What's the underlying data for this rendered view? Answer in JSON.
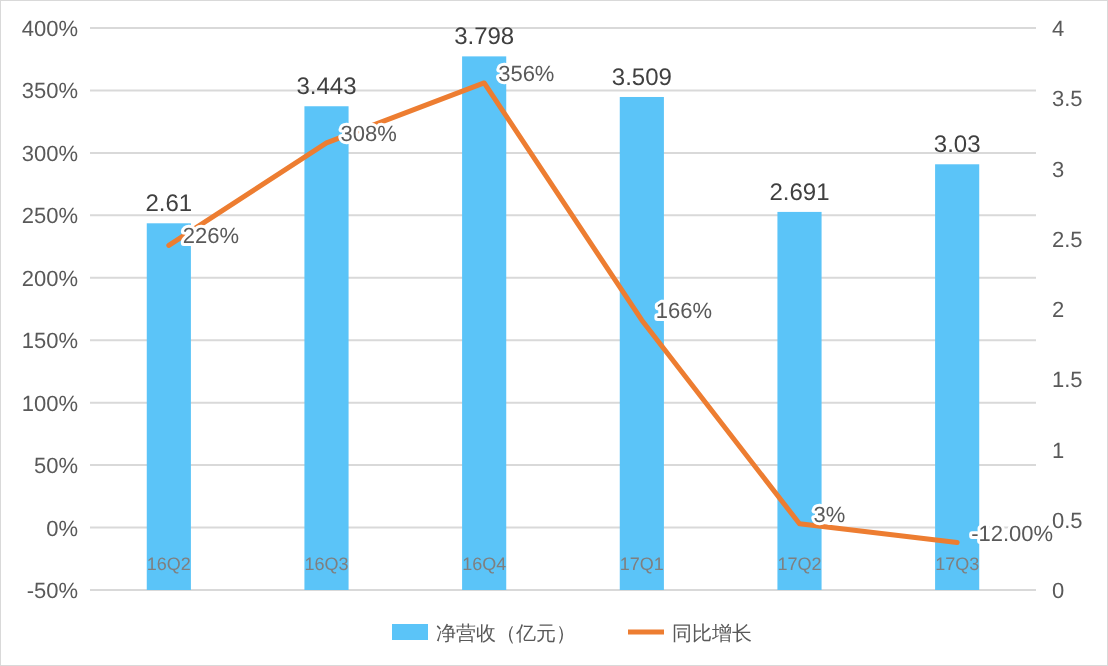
{
  "chart_data": {
    "type": "bar",
    "categories": [
      "16Q2",
      "16Q3",
      "16Q4",
      "17Q1",
      "17Q2",
      "17Q3"
    ],
    "series": [
      {
        "name": "净营收（亿元）",
        "axis": "y2",
        "color": "#5bc4f8",
        "values": [
          2.61,
          3.443,
          3.798,
          3.509,
          2.691,
          3.03
        ],
        "data_labels": true
      },
      {
        "name": "同比增长",
        "type": "line",
        "axis": "y",
        "color": "#ed7d31",
        "values": [
          226,
          308,
          356,
          166,
          3,
          -12
        ],
        "value_labels": [
          "226%",
          "308%",
          "356%",
          "166%",
          "3%",
          "-12.00%"
        ]
      }
    ],
    "ylim": [
      -50,
      400
    ],
    "yticks": [
      {
        "value": -50,
        "label": "-50%"
      },
      {
        "value": 0,
        "label": "0%"
      },
      {
        "value": 50,
        "label": "50%"
      },
      {
        "value": 100,
        "label": "100%"
      },
      {
        "value": 150,
        "label": "150%"
      },
      {
        "value": 200,
        "label": "200%"
      },
      {
        "value": 250,
        "label": "250%"
      },
      {
        "value": 300,
        "label": "300%"
      },
      {
        "value": 350,
        "label": "350%"
      },
      {
        "value": 400,
        "label": "400%"
      }
    ],
    "y2lim": [
      0,
      4
    ],
    "y2ticks": [
      0,
      0.5,
      1,
      1.5,
      2,
      2.5,
      3,
      3.5,
      4
    ],
    "grid": "y",
    "legend": "bottom",
    "marker": "none",
    "line_style": "solid"
  }
}
